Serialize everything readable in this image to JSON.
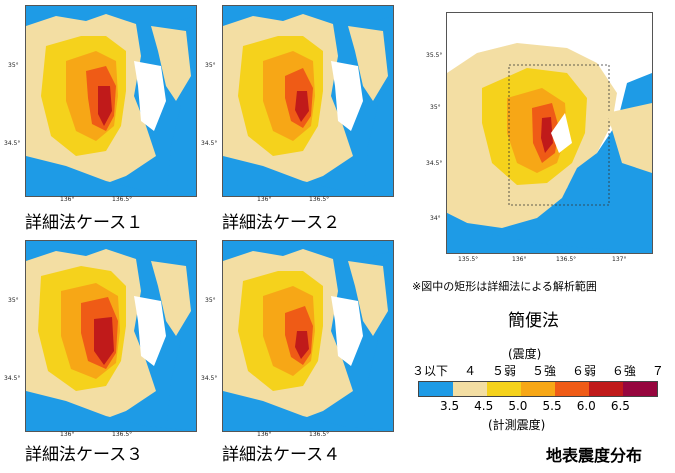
{
  "maps": [
    {
      "caption": "詳細法ケース１",
      "yticks": [
        "35°",
        "34.5°"
      ],
      "xticks": [
        "136°",
        "136.5°"
      ]
    },
    {
      "caption": "詳細法ケース２",
      "yticks": [
        "35°",
        "34.5°"
      ],
      "xticks": [
        "136°",
        "136.5°"
      ]
    },
    {
      "caption": "詳細法ケース３",
      "yticks": [
        "35°",
        "34.5°"
      ],
      "xticks": [
        "136°",
        "136.5°"
      ]
    },
    {
      "caption": "詳細法ケース４",
      "yticks": [
        "35°",
        "34.5°"
      ],
      "xticks": [
        "136°",
        "136.5°"
      ]
    }
  ],
  "simple_map": {
    "yticks": [
      "35.5°",
      "35°",
      "34.5°",
      "34°"
    ],
    "xticks": [
      "135.5°",
      "136°",
      "136.5°",
      "137°"
    ],
    "note": "※図中の矩形は詳細法による解析範囲",
    "caption": "簡便法"
  },
  "legend": {
    "top_label": "(震度)",
    "classes": [
      "３以下",
      "４",
      "５弱",
      "５強",
      "６弱",
      "６強",
      "７"
    ],
    "values": [
      "3.5",
      "4.5",
      "5.0",
      "5.5",
      "6.0",
      "6.5"
    ],
    "bottom_label": "(計測震度)",
    "colors": [
      "#1e9be6",
      "#f3dea3",
      "#f5d21c",
      "#f7a716",
      "#ef5b16",
      "#c01a1a",
      "#96063e"
    ]
  },
  "title": "地表震度分布"
}
